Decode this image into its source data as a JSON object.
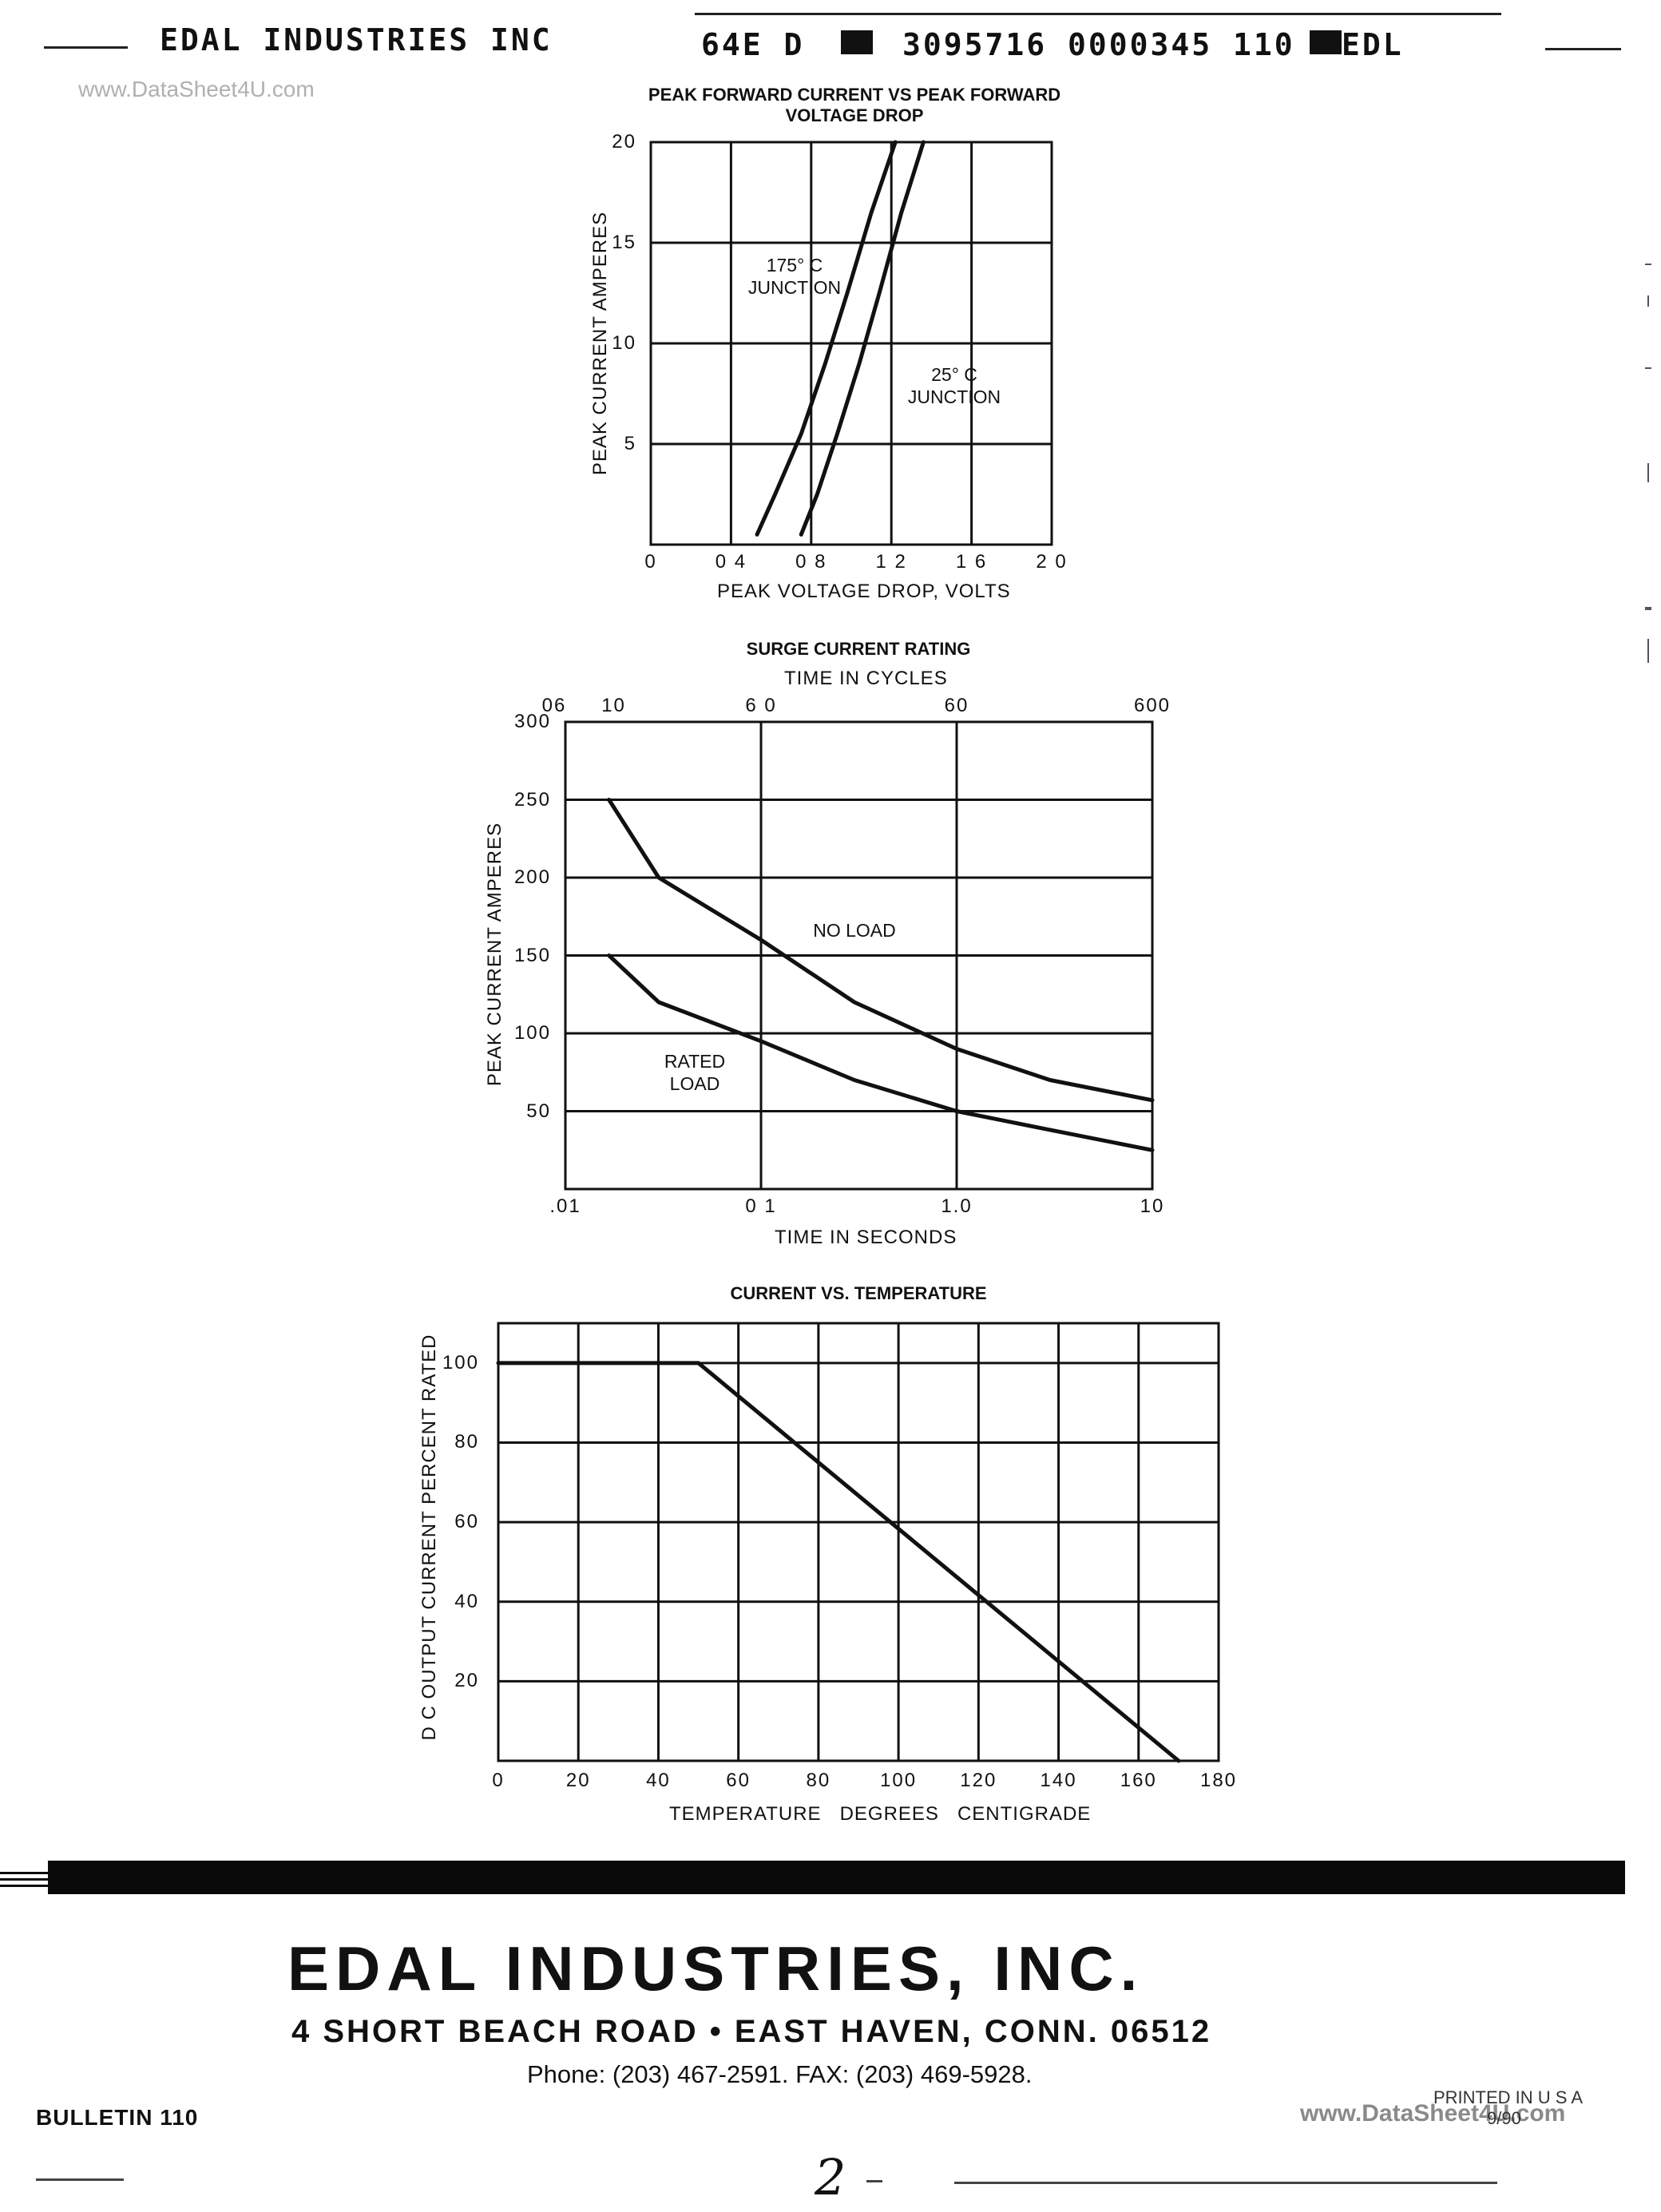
{
  "header": {
    "company": "EDAL INDUSTRIES INC",
    "code": "64E D",
    "code_numbers": "3095716 0000345 110",
    "code_suffix": "EDL"
  },
  "watermark": {
    "top": "www.DataSheet4U.com",
    "bottom": "www.DataSheet4U.com"
  },
  "charts": [
    {
      "title_line1": "PEAK FORWARD CURRENT VS PEAK FORWARD",
      "title_line2": "VOLTAGE DROP",
      "xlabel": "PEAK VOLTAGE DROP, VOLTS",
      "ylabel": "PEAK CURRENT AMPERES",
      "xticks": [
        "0",
        "0 4",
        "0 8",
        "1 2",
        "1 6",
        "2 0"
      ],
      "yticks": [
        "20",
        "15",
        "10",
        "5"
      ],
      "annotations": {
        "hot_line1": "175° C",
        "hot_line2": "JUNCTION",
        "cold_line1": "25° C",
        "cold_line2": "JUNCTION"
      }
    },
    {
      "title": "SURGE CURRENT RATING",
      "top_axis_label": "TIME IN CYCLES",
      "top_ticks": [
        "06",
        "10",
        "6 0",
        "60",
        "600"
      ],
      "xlabel": "TIME IN SECONDS",
      "ylabel": "PEAK CURRENT AMPERES",
      "xticks": [
        ".01",
        "0 1",
        "1.0",
        "10"
      ],
      "yticks": [
        "300",
        "250",
        "200",
        "150",
        "100",
        "50"
      ],
      "annotations": {
        "no_load": "NO LOAD",
        "rated_line1": "RATED",
        "rated_line2": "LOAD"
      }
    },
    {
      "title": "CURRENT VS. TEMPERATURE",
      "xlabel": "TEMPERATURE   DEGREES   CENTIGRADE",
      "ylabel": "D C  OUTPUT CURRENT PERCENT RATED",
      "xticks": [
        "0",
        "20",
        "40",
        "60",
        "80",
        "100",
        "120",
        "140",
        "160",
        "180"
      ],
      "yticks": [
        "100",
        "80",
        "60",
        "40",
        "20"
      ]
    }
  ],
  "chart_data": [
    {
      "type": "line",
      "title": "PEAK FORWARD CURRENT VS PEAK FORWARD VOLTAGE DROP",
      "xlabel": "PEAK VOLTAGE DROP, VOLTS",
      "ylabel": "PEAK CURRENT AMPERES",
      "xlim": [
        0,
        2.0
      ],
      "ylim": [
        0,
        20
      ],
      "grid": true,
      "series": [
        {
          "name": "175° C JUNCTION",
          "x": [
            0.53,
            0.62,
            0.75,
            0.87,
            0.98,
            1.1,
            1.22
          ],
          "y": [
            0.5,
            2.5,
            5.5,
            9,
            12.5,
            16.5,
            20
          ]
        },
        {
          "name": "25° C JUNCTION",
          "x": [
            0.75,
            0.83,
            0.93,
            1.04,
            1.14,
            1.25,
            1.36
          ],
          "y": [
            0.5,
            2.5,
            5.5,
            9,
            12.5,
            16.5,
            20
          ]
        }
      ]
    },
    {
      "type": "line",
      "title": "SURGE CURRENT RATING",
      "xlabel": "TIME IN SECONDS",
      "ylabel": "PEAK CURRENT AMPERES",
      "x_scale": "log",
      "xlim": [
        0.01,
        10
      ],
      "ylim": [
        0,
        300
      ],
      "grid": true,
      "series": [
        {
          "name": "NO LOAD",
          "x": [
            0.0167,
            0.03,
            0.1,
            0.3,
            1.0,
            3.0,
            10
          ],
          "y": [
            250,
            200,
            160,
            120,
            90,
            70,
            57
          ]
        },
        {
          "name": "RATED LOAD",
          "x": [
            0.0167,
            0.03,
            0.1,
            0.3,
            1.0,
            3.0,
            10
          ],
          "y": [
            150,
            120,
            95,
            70,
            50,
            38,
            25
          ]
        }
      ]
    },
    {
      "type": "line",
      "title": "CURRENT VS. TEMPERATURE",
      "xlabel": "TEMPERATURE DEGREES CENTIGRADE",
      "ylabel": "D C OUTPUT CURRENT PERCENT RATED",
      "xlim": [
        0,
        180
      ],
      "ylim": [
        0,
        110
      ],
      "grid": true,
      "series": [
        {
          "x": [
            0,
            50,
            170
          ],
          "y": [
            100,
            100,
            0
          ]
        }
      ]
    }
  ],
  "footer": {
    "company": "EDAL INDUSTRIES, INC.",
    "address": "4 SHORT BEACH ROAD • EAST HAVEN, CONN. 06512",
    "phone": "Phone: (203) 467-2591. FAX: (203) 469-5928.",
    "bulletin": "BULLETIN 110",
    "printed": "PRINTED IN U S A",
    "printed_date": "9/90",
    "page_mark": "2"
  }
}
